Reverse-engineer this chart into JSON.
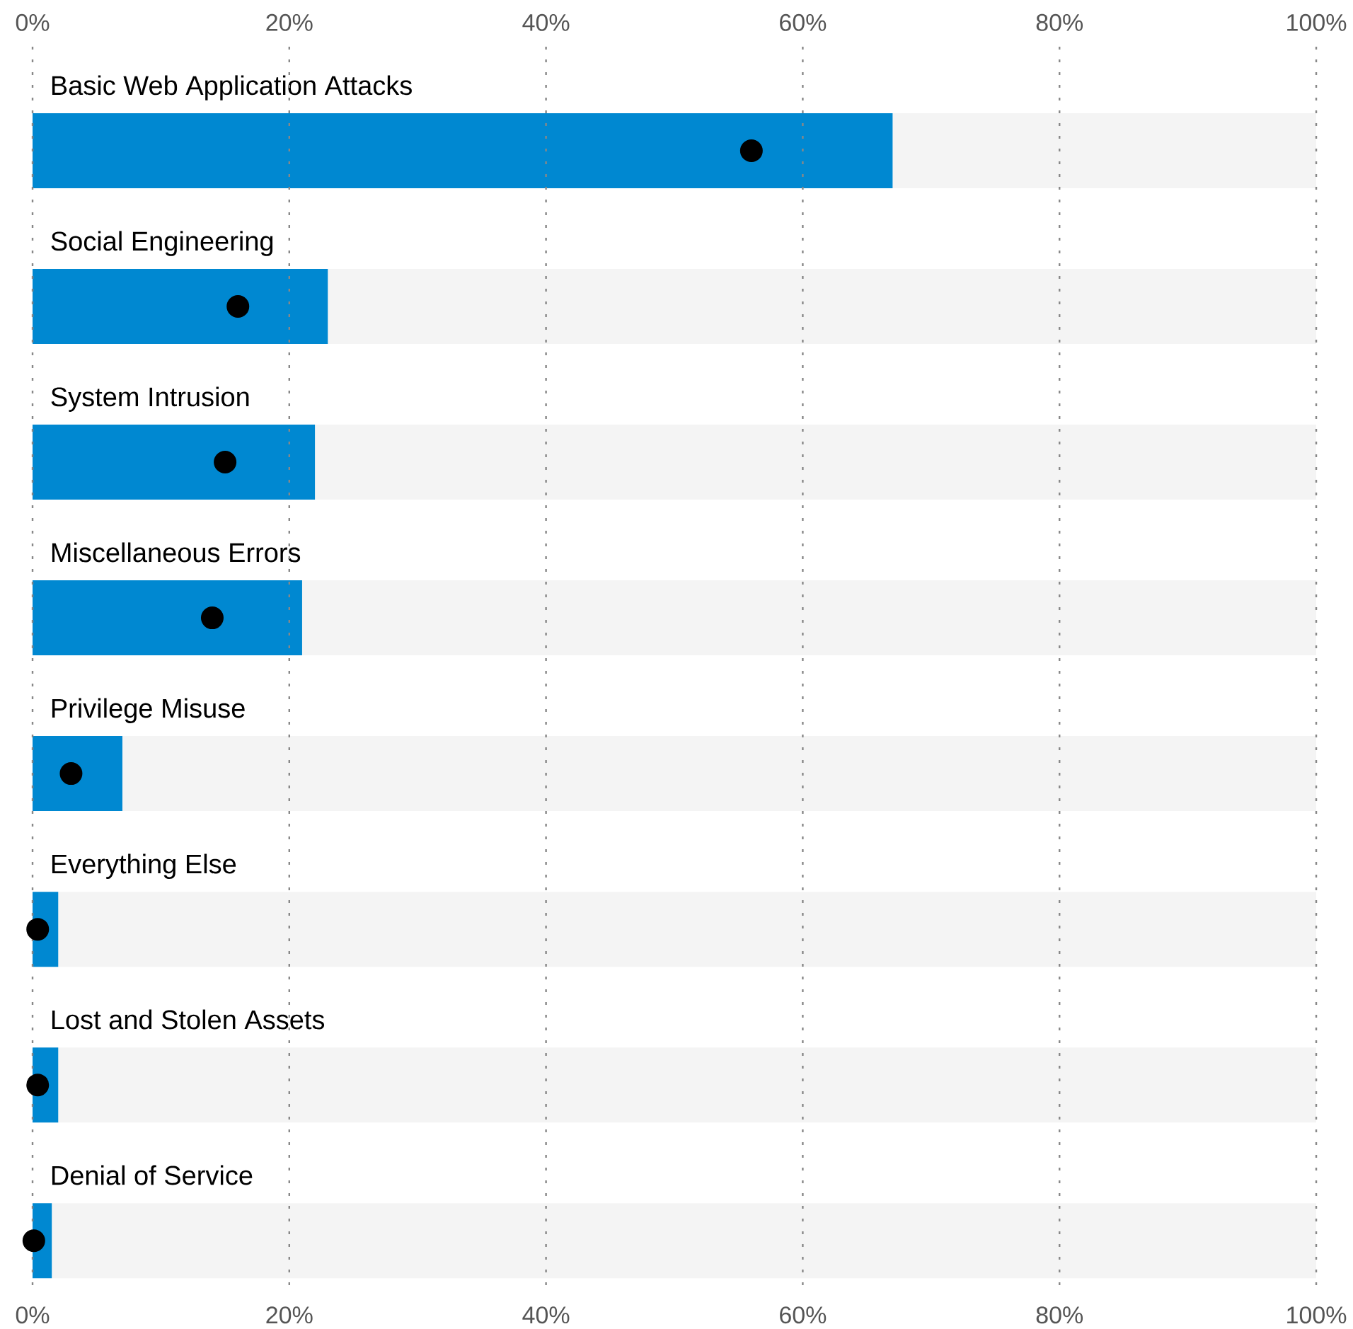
{
  "chart_data": {
    "type": "bar",
    "orientation": "horizontal",
    "stacked": true,
    "grid": "x",
    "marker": "circle",
    "categories": [
      "Basic Web Application Attacks",
      "Social Engineering",
      "System Intrusion",
      "Miscellaneous Errors",
      "Privilege Misuse",
      "Everything Else",
      "Lost and Stolen Assets",
      "Denial of Service"
    ],
    "series": [
      {
        "color": "#0088d1",
        "values": [
          67,
          23,
          22,
          21,
          7,
          2,
          2,
          1.5
        ]
      },
      {
        "color": "#f4f4f4",
        "values": [
          33,
          77,
          78,
          79,
          93,
          98,
          98,
          98.5
        ]
      },
      {
        "type": "scatter",
        "color": "#000000",
        "values": [
          56,
          16,
          15,
          14,
          3,
          0.4,
          0.4,
          0.1
        ]
      }
    ],
    "xlim": [
      0,
      100
    ],
    "xticks": [
      {
        "value": 0,
        "label": "0%"
      },
      {
        "value": 20,
        "label": "20%"
      },
      {
        "value": 40,
        "label": "40%"
      },
      {
        "value": 60,
        "label": "60%"
      },
      {
        "value": 80,
        "label": "80%"
      },
      {
        "value": 100,
        "label": "100%"
      }
    ],
    "x2lim": [
      0,
      100
    ],
    "x2ticks": [
      {
        "value": 0,
        "label": "0%"
      },
      {
        "value": 20,
        "label": "20%"
      },
      {
        "value": 40,
        "label": "40%"
      },
      {
        "value": 60,
        "label": "60%"
      },
      {
        "value": 80,
        "label": "80%"
      },
      {
        "value": 100,
        "label": "100%"
      }
    ]
  }
}
